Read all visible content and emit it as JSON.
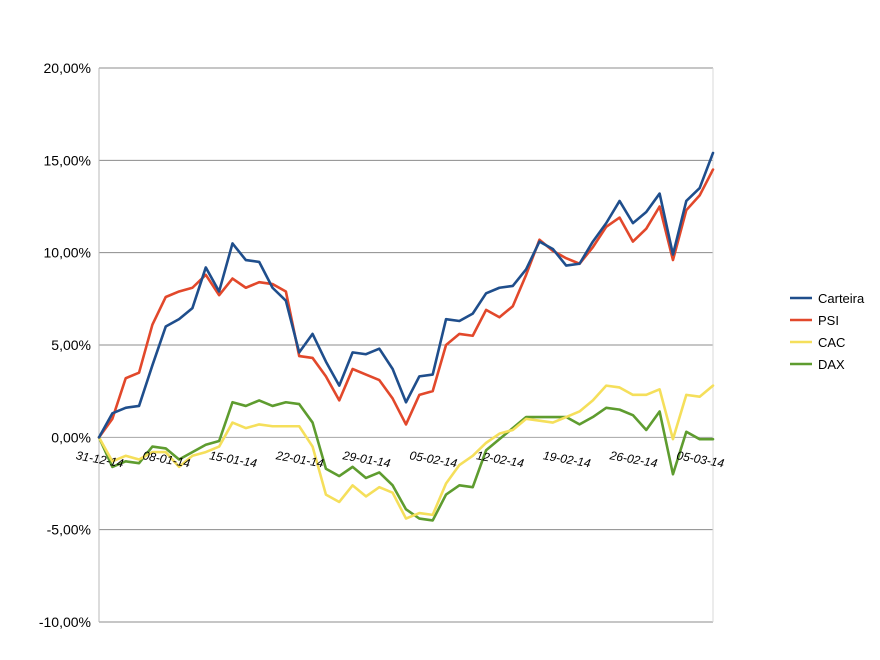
{
  "chart_data": {
    "type": "line",
    "title": "",
    "xlabel": "",
    "ylabel": "",
    "ylim": [
      -10,
      20
    ],
    "y_ticks": [
      "20,00%",
      "15,00%",
      "10,00%",
      "5,00%",
      "0,00%",
      "-5,00%",
      "-10,00%"
    ],
    "y_tick_values": [
      20,
      15,
      10,
      5,
      0,
      -5,
      -10
    ],
    "x_tick_labels": [
      "31-12-14",
      "08-01-14",
      "15-01-14",
      "22-01-14",
      "29-01-14",
      "05-02-14",
      "12-02-14",
      "19-02-14",
      "26-02-14",
      "05-03-14"
    ],
    "x_tick_index": [
      0,
      5,
      10,
      15,
      20,
      25,
      30,
      35,
      40,
      45
    ],
    "grid": "horizontal",
    "legend_position": "right",
    "series": [
      {
        "name": "Carteira",
        "color": "#1f4e8c",
        "values": [
          0.0,
          1.3,
          1.6,
          1.7,
          3.9,
          6.0,
          6.4,
          7.0,
          9.2,
          7.9,
          10.5,
          9.6,
          9.5,
          8.1,
          7.4,
          4.6,
          5.6,
          4.1,
          2.8,
          4.6,
          4.5,
          4.8,
          3.7,
          1.9,
          3.3,
          3.4,
          6.4,
          6.3,
          6.7,
          7.8,
          8.1,
          8.2,
          9.1,
          10.6,
          10.2,
          9.3,
          9.4,
          10.6,
          11.6,
          12.8,
          11.6,
          12.2,
          13.2,
          9.9,
          12.8,
          13.5,
          15.4
        ]
      },
      {
        "name": "PSI",
        "color": "#e2482b",
        "values": [
          0.0,
          1.0,
          3.2,
          3.5,
          6.1,
          7.6,
          7.9,
          8.1,
          8.8,
          7.7,
          8.6,
          8.1,
          8.4,
          8.3,
          7.9,
          4.4,
          4.3,
          3.3,
          2.0,
          3.7,
          3.4,
          3.1,
          2.1,
          0.7,
          2.3,
          2.5,
          5.0,
          5.6,
          5.5,
          6.9,
          6.5,
          7.1,
          8.8,
          10.7,
          10.1,
          9.7,
          9.4,
          10.3,
          11.4,
          11.9,
          10.6,
          11.3,
          12.5,
          9.6,
          12.3,
          13.1,
          14.5
        ]
      },
      {
        "name": "CAC",
        "color": "#f5df5b",
        "values": [
          0.0,
          -1.3,
          -1.0,
          -1.2,
          -0.8,
          -0.8,
          -1.6,
          -1.0,
          -0.8,
          -0.5,
          0.8,
          0.5,
          0.7,
          0.6,
          0.6,
          0.6,
          -0.5,
          -3.1,
          -3.5,
          -2.6,
          -3.2,
          -2.7,
          -3.0,
          -4.4,
          -4.1,
          -4.2,
          -2.5,
          -1.5,
          -1.0,
          -0.3,
          0.2,
          0.4,
          1.0,
          0.9,
          0.8,
          1.1,
          1.4,
          2.0,
          2.8,
          2.7,
          2.3,
          2.3,
          2.6,
          -0.1,
          2.3,
          2.2,
          2.8
        ]
      },
      {
        "name": "DAX",
        "color": "#5e9c2f",
        "values": [
          0.0,
          -1.6,
          -1.3,
          -1.4,
          -0.5,
          -0.6,
          -1.2,
          -0.8,
          -0.4,
          -0.2,
          1.9,
          1.7,
          2.0,
          1.7,
          1.9,
          1.8,
          0.8,
          -1.7,
          -2.1,
          -1.6,
          -2.2,
          -1.9,
          -2.6,
          -3.9,
          -4.4,
          -4.5,
          -3.1,
          -2.6,
          -2.7,
          -0.7,
          -0.1,
          0.5,
          1.1,
          1.1,
          1.1,
          1.1,
          0.7,
          1.1,
          1.6,
          1.5,
          1.2,
          0.4,
          1.4,
          -2.0,
          0.3,
          -0.1,
          -0.1
        ]
      }
    ]
  }
}
